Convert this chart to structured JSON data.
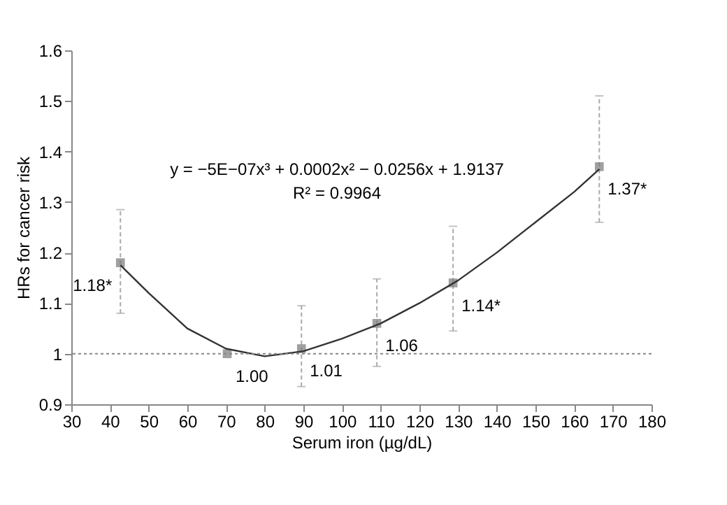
{
  "chart_data": {
    "type": "scatter",
    "xlabel": "Serum iron (µg/dL)",
    "ylabel": "HRs for cancer risk",
    "xlim": [
      30,
      180
    ],
    "xticks": [
      30,
      40,
      50,
      60,
      70,
      80,
      90,
      100,
      110,
      120,
      130,
      140,
      150,
      160,
      170,
      180
    ],
    "ylim": [
      0.9,
      1.6
    ],
    "yticks": [
      0.9,
      1,
      1.1,
      1.2,
      1.3,
      1.4,
      1.5,
      1.6
    ],
    "grid": false,
    "series": [
      {
        "color": "#777777",
        "marker": "square",
        "x": [
          42.7,
          70.3,
          89.5,
          109,
          128.7,
          166.5
        ],
        "values": [
          1.18,
          1.0,
          1.01,
          1.06,
          1.14,
          1.37
        ],
        "errors": [
          [
            1.08,
            1.285
          ],
          null,
          [
            0.935,
            1.095
          ],
          [
            0.975,
            1.148
          ],
          [
            1.045,
            1.252
          ],
          [
            1.26,
            1.51
          ]
        ],
        "value_labels": [
          "1.18*",
          "1.00",
          "1.01",
          "1.06",
          "1.14*",
          "1.37*"
        ]
      },
      {
        "type": "line",
        "color": "#333333",
        "line_style": "solid",
        "x": [
          42.7,
          50,
          60,
          70,
          80,
          90,
          100,
          110,
          120,
          130,
          140,
          150,
          160,
          166.5
        ],
        "values": [
          1.175,
          1.12,
          1.05,
          1.01,
          0.995,
          1.005,
          1.03,
          1.06,
          1.1,
          1.145,
          1.2,
          1.26,
          1.32,
          1.365
        ]
      }
    ],
    "ref_lines": [
      {
        "axis": "y",
        "value": 1,
        "color": "#888888",
        "line_style": "dotted"
      }
    ],
    "annotations": [
      "y = −5E−07x³ + 0.0002x² − 0.0256x + 1.9137",
      "R² = 0.9964"
    ]
  }
}
